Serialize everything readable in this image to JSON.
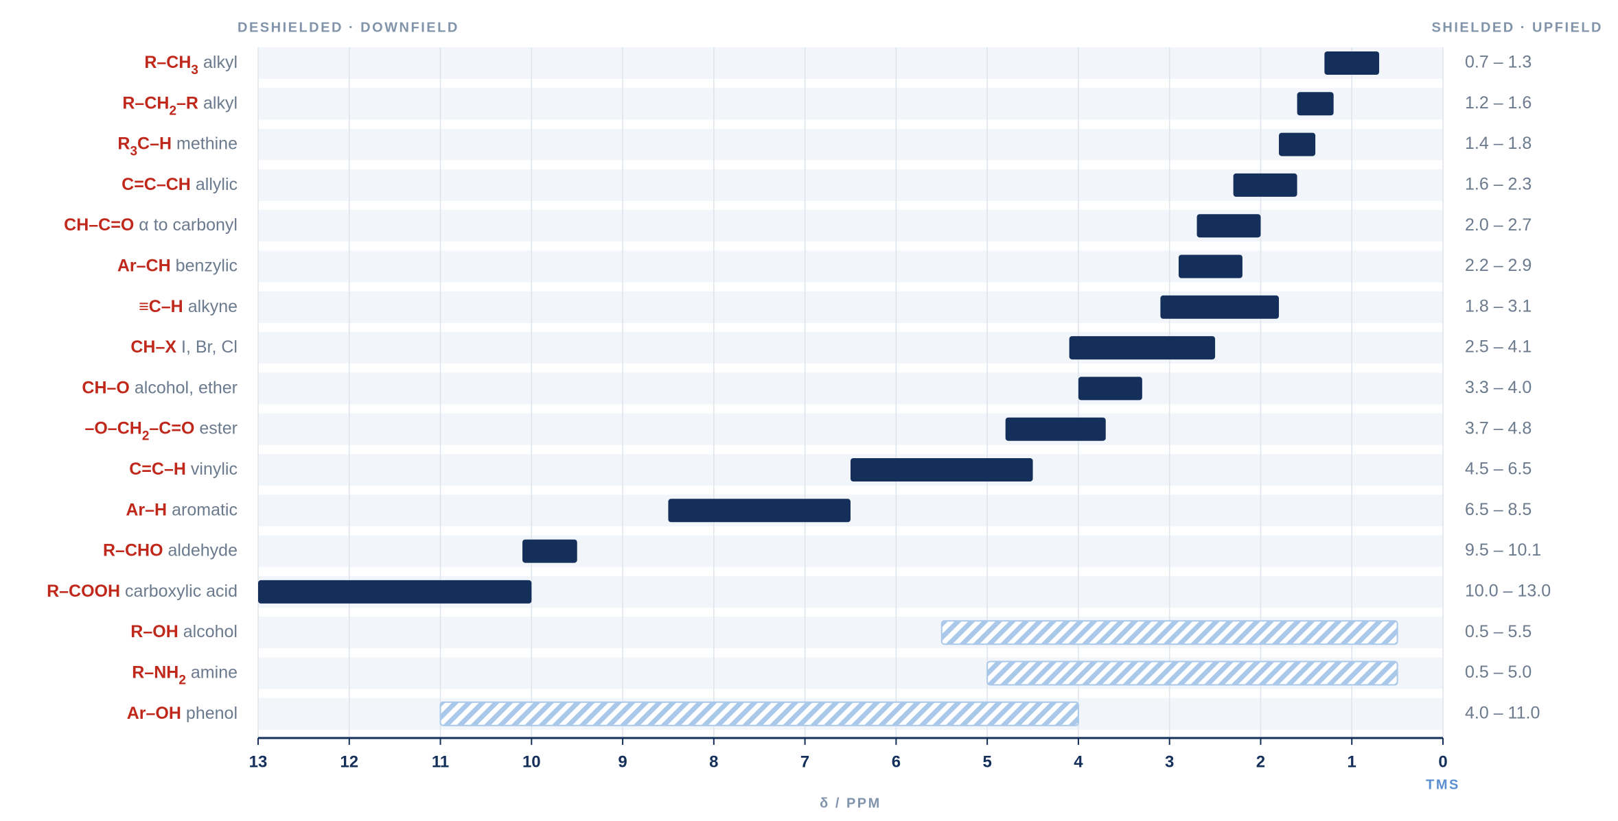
{
  "chart_data": {
    "type": "range-bar",
    "top_left_label": "DESHIELDED · DOWNFIELD",
    "top_right_label": "SHIELDED · UPFIELD",
    "x_label": "δ / PPM",
    "zero_label": "TMS",
    "categories": [
      {
        "formula": [
          "R–CH",
          "3"
        ],
        "description": "alkyl"
      },
      {
        "formula": [
          "R–CH",
          "2",
          "–R"
        ],
        "description": "alkyl"
      },
      {
        "formula": [
          "R",
          "3",
          "C–H"
        ],
        "description": "methine"
      },
      {
        "formula": [
          "C=C–CH"
        ],
        "description": "allylic"
      },
      {
        "formula": [
          "CH–C=O"
        ],
        "description": "α to carbonyl"
      },
      {
        "formula": [
          "Ar–CH"
        ],
        "description": "benzylic"
      },
      {
        "formula": [
          "≡C–H"
        ],
        "description": "alkyne"
      },
      {
        "formula": [
          "CH–X"
        ],
        "description": "I, Br, Cl"
      },
      {
        "formula": [
          "CH–O"
        ],
        "description": "alcohol, ether"
      },
      {
        "formula": [
          "–O–CH",
          "2",
          "–C=O"
        ],
        "description": "ester"
      },
      {
        "formula": [
          "C=C–H"
        ],
        "description": "vinylic"
      },
      {
        "formula": [
          "Ar–H"
        ],
        "description": "aromatic"
      },
      {
        "formula": [
          "R–CHO"
        ],
        "description": "aldehyde"
      },
      {
        "formula": [
          "R–COOH"
        ],
        "description": "carboxylic acid"
      },
      {
        "formula": [
          "R–OH"
        ],
        "description": "alcohol"
      },
      {
        "formula": [
          "R–NH",
          "2"
        ],
        "description": "amine"
      },
      {
        "formula": [
          "Ar–OH"
        ],
        "description": "phenol"
      }
    ],
    "low": [
      0.7,
      1.2,
      1.4,
      1.6,
      2.0,
      2.2,
      1.8,
      2.5,
      3.3,
      3.7,
      4.5,
      6.5,
      9.5,
      10.0,
      0.5,
      0.5,
      4.0
    ],
    "high": [
      1.3,
      1.6,
      1.8,
      2.3,
      2.7,
      2.9,
      3.1,
      4.1,
      4.0,
      4.8,
      6.5,
      8.5,
      10.1,
      13.0,
      5.5,
      5.0,
      11.0
    ],
    "value_labels": [
      "0.7 – 1.3",
      "1.2 – 1.6",
      "1.4 – 1.8",
      "1.6 – 2.3",
      "2.0 – 2.7",
      "2.2 – 2.9",
      "1.8 – 3.1",
      "2.5 – 4.1",
      "3.3 – 4.0",
      "3.7 – 4.8",
      "4.5 – 6.5",
      "6.5 – 8.5",
      "9.5 – 10.1",
      "10.0 – 13.0",
      "0.5 – 5.5",
      "0.5 – 5.0",
      "4.0 – 11.0"
    ],
    "pattern": [
      "solid",
      "solid",
      "solid",
      "solid",
      "solid",
      "solid",
      "solid",
      "solid",
      "solid",
      "solid",
      "solid",
      "solid",
      "solid",
      "solid",
      "hatched",
      "hatched",
      "hatched"
    ],
    "color": "#14305a",
    "hatch_color": "#a9c8ea",
    "xlim": [
      13,
      0
    ],
    "xticks": [
      13,
      12,
      11,
      10,
      9,
      8,
      7,
      6,
      5,
      4,
      3,
      2,
      1,
      0
    ],
    "grid": true
  }
}
